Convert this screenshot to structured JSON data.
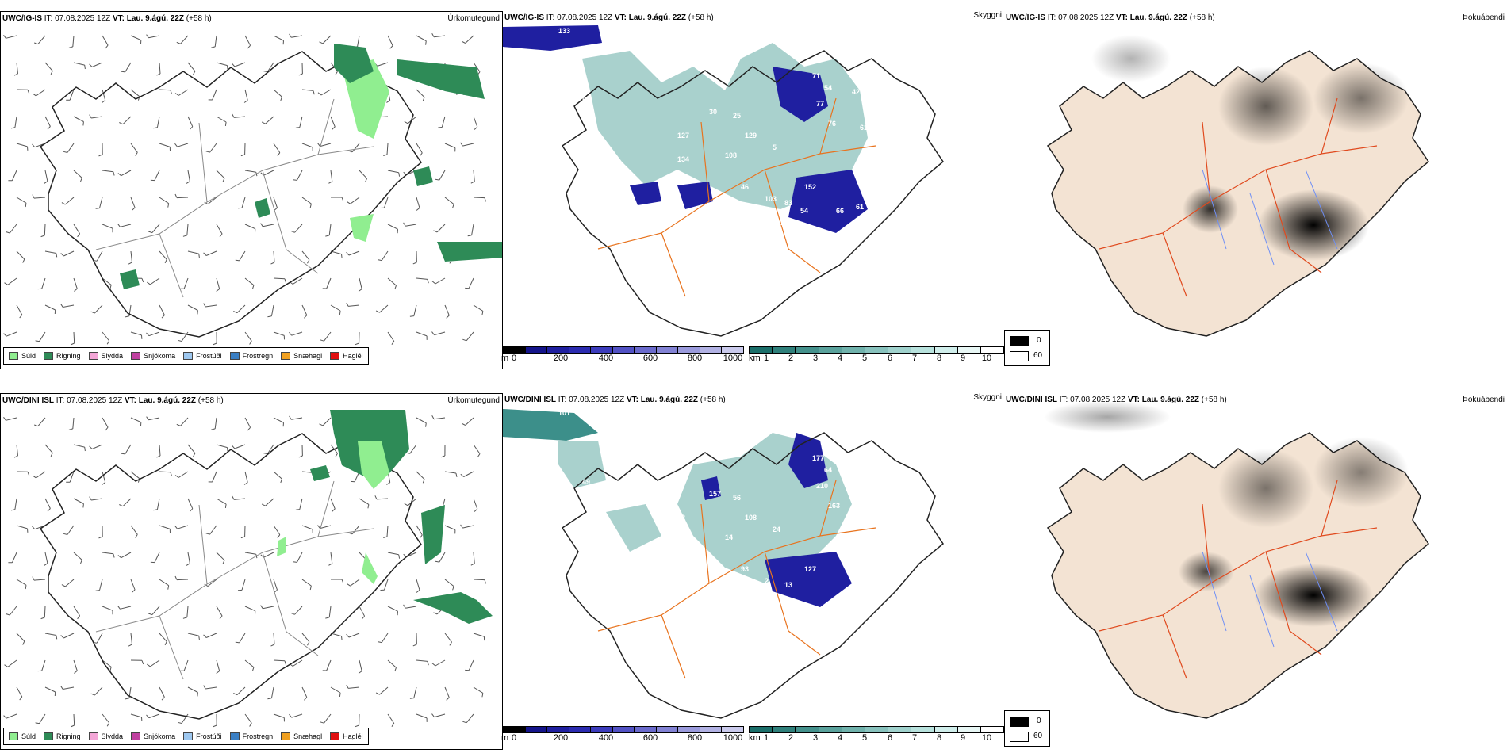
{
  "rows": [
    {
      "model": "UWC/IG-IS",
      "it_label": "IT:",
      "it_value": "07.08.2025 12Z",
      "vt_label": "VT:",
      "vt_value": "Lau. 9.ágú. 22Z",
      "lead": "(+58 h)",
      "vis_labels": [
        "133",
        "71",
        "54",
        "42",
        "90",
        "77",
        "50",
        "57",
        "76",
        "30",
        "25",
        "61",
        "95",
        "127",
        "129",
        "134",
        "108",
        "5",
        "46",
        "152",
        "84",
        "91",
        "103",
        "83",
        "54",
        "66",
        "61",
        "145",
        "69",
        "75",
        "9"
      ]
    },
    {
      "model": "UWC/DINI ISL",
      "it_label": "IT:",
      "it_value": "07.08.2025 12Z",
      "vt_label": "VT:",
      "vt_value": "Lau. 9.ágú. 22Z",
      "lead": "(+58 h)",
      "vis_labels": [
        "101",
        "177",
        "64",
        "54",
        "89",
        "210",
        "63",
        "49",
        "163",
        "157",
        "56",
        "58",
        "103",
        "62",
        "108",
        "10",
        "14",
        "24",
        "93",
        "127",
        "60",
        "54",
        "2",
        "13"
      ]
    }
  ],
  "panels": {
    "precip_type_title": "Úrkomutegund",
    "visibility_title": "Skyggni",
    "fog_title": "Þokuábendi"
  },
  "precip_types": [
    {
      "label": "Súld",
      "color": "#90ee90"
    },
    {
      "label": "Rigning",
      "color": "#2e8b57"
    },
    {
      "label": "Slydda",
      "color": "#f4a6d7"
    },
    {
      "label": "Snjókoma",
      "color": "#c040a0"
    },
    {
      "label": "Frostúði",
      "color": "#9ec8f0"
    },
    {
      "label": "Frostregn",
      "color": "#3a7fc4"
    },
    {
      "label": "Snæhagl",
      "color": "#f0a020"
    },
    {
      "label": "Haglél",
      "color": "#e01010"
    }
  ],
  "cloud_base_bar": {
    "unit": "m",
    "ticks": [
      "0",
      "200",
      "400",
      "600",
      "800",
      "1000"
    ],
    "colors": [
      "#000000",
      "#14148a",
      "#1f1fa0",
      "#2b2bb0",
      "#3c3cbc",
      "#5252c4",
      "#6a6acc",
      "#8282d4",
      "#9a9adc",
      "#b2b2e4",
      "#cacaec"
    ]
  },
  "visibility_bar": {
    "unit": "km",
    "ticks": [
      "1",
      "2",
      "3",
      "4",
      "5",
      "6",
      "7",
      "8",
      "9",
      "10"
    ],
    "colors": [
      "#1b6f6a",
      "#2f807b",
      "#44918c",
      "#5aa29c",
      "#70b2ac",
      "#88c2bd",
      "#a0d2cd",
      "#b8e2dd",
      "#d0eeeb",
      "#e8f7f5",
      "#ffffff"
    ]
  },
  "fog_legend": {
    "low": "0",
    "high": "60",
    "low_color": "#000000",
    "high_color": "#ffffff"
  }
}
